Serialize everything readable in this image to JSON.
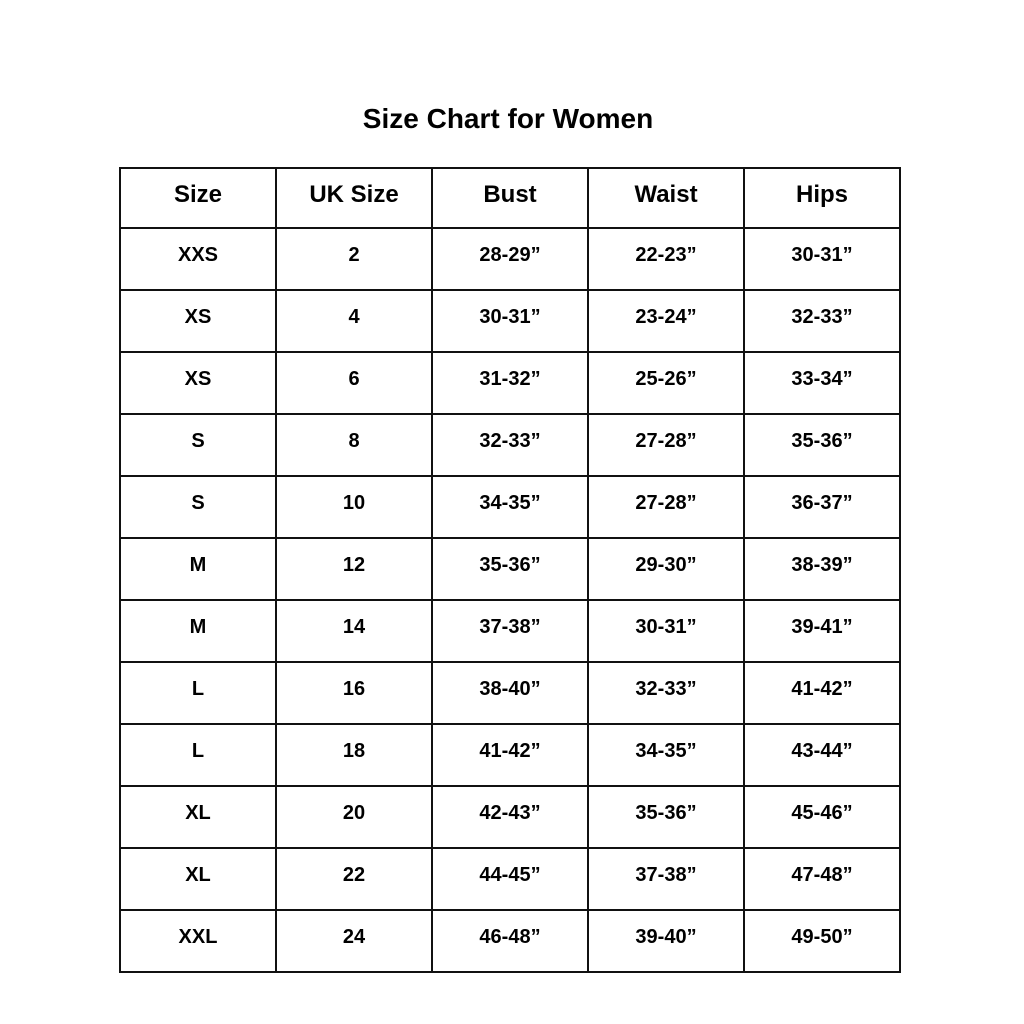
{
  "title": "Size Chart for Women",
  "table": {
    "headers": [
      "Size",
      "UK Size",
      "Bust",
      "Waist",
      "Hips"
    ],
    "rows": [
      [
        "XXS",
        "2",
        "28-29”",
        "22-23”",
        "30-31”"
      ],
      [
        "XS",
        "4",
        "30-31”",
        "23-24”",
        "32-33”"
      ],
      [
        "XS",
        "6",
        "31-32”",
        "25-26”",
        "33-34”"
      ],
      [
        "S",
        "8",
        "32-33”",
        "27-28”",
        "35-36”"
      ],
      [
        "S",
        "10",
        "34-35”",
        "27-28”",
        "36-37”"
      ],
      [
        "M",
        "12",
        "35-36”",
        "29-30”",
        "38-39”"
      ],
      [
        "M",
        "14",
        "37-38”",
        "30-31”",
        "39-41”"
      ],
      [
        "L",
        "16",
        "38-40”",
        "32-33”",
        "41-42”"
      ],
      [
        "L",
        "18",
        "41-42”",
        "34-35”",
        "43-44”"
      ],
      [
        "XL",
        "20",
        "42-43”",
        "35-36”",
        "45-46”"
      ],
      [
        "XL",
        "22",
        "44-45”",
        "37-38”",
        "47-48”"
      ],
      [
        "XXL",
        "24",
        "46-48”",
        "39-40”",
        "49-50”"
      ]
    ]
  }
}
